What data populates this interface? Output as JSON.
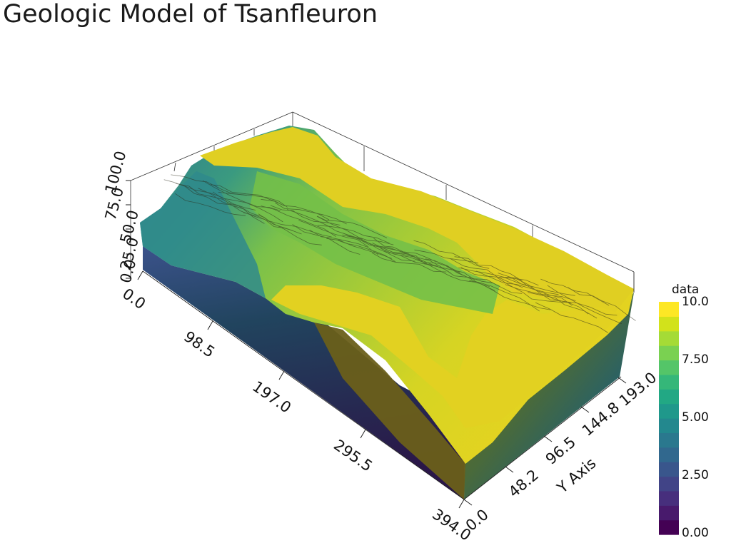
{
  "title": "Geologic Model of Tsanfleuron",
  "axes": {
    "x_ticks": [
      "0.0",
      "98.5",
      "197.0",
      "295.5",
      "394.0"
    ],
    "y_ticks": [
      "0.0",
      "48.2",
      "96.5",
      "144.8",
      "193.0"
    ],
    "z_ticks": [
      "0.0",
      "25.0",
      "50.0",
      "75.0",
      "100.0"
    ],
    "y_title": "Y Axis"
  },
  "colorbar": {
    "title": "data",
    "labels": [
      "10.0",
      "7.50",
      "5.00",
      "2.50",
      "0.00"
    ],
    "colors": [
      "#440154",
      "#481a6c",
      "#472f7d",
      "#414487",
      "#39568c",
      "#31688e",
      "#2a788e",
      "#23888e",
      "#1f988b",
      "#22a884",
      "#35b779",
      "#54c568",
      "#7ad151",
      "#a5db36",
      "#d2e21b",
      "#fde725"
    ]
  },
  "palette": {
    "surface_yellow": "#e3d021",
    "surface_green": "#72bf47",
    "surface_lightgreen": "#a6cc35",
    "surface_teal": "#2a8c8c",
    "side_dark": "#2a1b4e",
    "side_olive": "#6b6019"
  }
}
